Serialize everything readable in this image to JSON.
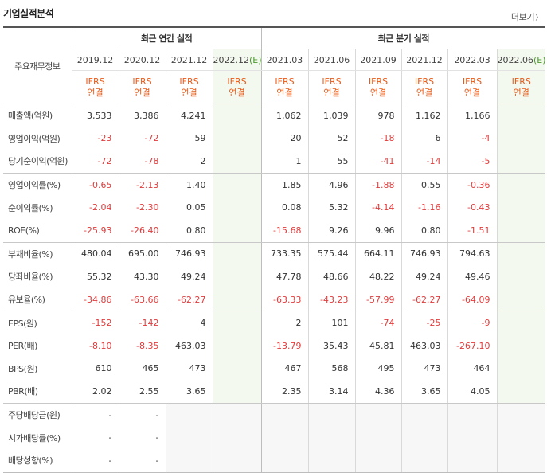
{
  "title": "기업실적분석",
  "more_label": "더보기",
  "row_header_label": "주요재무정보",
  "annual_group_label": "최근 연간 실적",
  "quarter_group_label": "최근 분기 실적",
  "annual_periods": [
    "2019.12",
    "2020.12",
    "2021.12",
    "2022.12(E)"
  ],
  "quarter_periods": [
    "2021.03",
    "2021.06",
    "2021.09",
    "2021.12",
    "2022.03",
    "2022.06(E)"
  ],
  "accounting": {
    "line1": "IFRS",
    "line2": "연결"
  },
  "colors": {
    "negative": "#e03c3c",
    "ifrs": "#e85c1a",
    "estimate_bg": "#f4f9ef"
  },
  "rows": [
    {
      "label": "매출액(억원)",
      "annual": [
        "3,533",
        "3,386",
        "4,241",
        ""
      ],
      "quarter": [
        "1,062",
        "1,039",
        "978",
        "1,162",
        "1,166",
        ""
      ]
    },
    {
      "label": "영업이익(억원)",
      "annual": [
        "-23",
        "-72",
        "59",
        ""
      ],
      "quarter": [
        "20",
        "52",
        "-18",
        "6",
        "-4",
        ""
      ]
    },
    {
      "label": "당기순이익(억원)",
      "annual": [
        "-72",
        "-78",
        "2",
        ""
      ],
      "quarter": [
        "1",
        "55",
        "-41",
        "-14",
        "-5",
        ""
      ]
    },
    {
      "label": "영업이익률(%)",
      "annual": [
        "-0.65",
        "-2.13",
        "1.40",
        ""
      ],
      "quarter": [
        "1.85",
        "4.96",
        "-1.88",
        "0.55",
        "-0.36",
        ""
      ]
    },
    {
      "label": "순이익률(%)",
      "annual": [
        "-2.04",
        "-2.30",
        "0.05",
        ""
      ],
      "quarter": [
        "0.08",
        "5.32",
        "-4.14",
        "-1.16",
        "-0.43",
        ""
      ]
    },
    {
      "label": "ROE(%)",
      "annual": [
        "-25.93",
        "-26.40",
        "0.80",
        ""
      ],
      "quarter": [
        "-15.68",
        "9.26",
        "9.96",
        "0.80",
        "-1.51",
        ""
      ]
    },
    {
      "label": "부채비율(%)",
      "annual": [
        "480.04",
        "695.00",
        "746.93",
        ""
      ],
      "quarter": [
        "733.35",
        "575.44",
        "664.11",
        "746.93",
        "794.63",
        ""
      ]
    },
    {
      "label": "당좌비율(%)",
      "annual": [
        "55.32",
        "43.30",
        "49.24",
        ""
      ],
      "quarter": [
        "47.78",
        "48.66",
        "48.22",
        "49.24",
        "49.46",
        ""
      ]
    },
    {
      "label": "유보율(%)",
      "annual": [
        "-34.86",
        "-63.66",
        "-62.27",
        ""
      ],
      "quarter": [
        "-63.33",
        "-43.23",
        "-57.99",
        "-62.27",
        "-64.09",
        ""
      ]
    },
    {
      "label": "EPS(원)",
      "annual": [
        "-152",
        "-142",
        "4",
        ""
      ],
      "quarter": [
        "2",
        "101",
        "-74",
        "-25",
        "-9",
        ""
      ]
    },
    {
      "label": "PER(배)",
      "annual": [
        "-8.10",
        "-8.35",
        "463.03",
        ""
      ],
      "quarter": [
        "-13.79",
        "35.43",
        "45.81",
        "463.03",
        "-267.10",
        ""
      ]
    },
    {
      "label": "BPS(원)",
      "annual": [
        "610",
        "465",
        "473",
        ""
      ],
      "quarter": [
        "467",
        "568",
        "495",
        "473",
        "464",
        ""
      ]
    },
    {
      "label": "PBR(배)",
      "annual": [
        "2.02",
        "2.55",
        "3.65",
        ""
      ],
      "quarter": [
        "2.35",
        "3.14",
        "4.36",
        "3.65",
        "4.05",
        ""
      ]
    },
    {
      "label": "주당배당금(원)",
      "annual": [
        "-",
        "-",
        "",
        ""
      ],
      "quarter": [
        "",
        "",
        "",
        "",
        "",
        ""
      ]
    },
    {
      "label": "시가배당률(%)",
      "annual": [
        "-",
        "-",
        "",
        ""
      ],
      "quarter": [
        "",
        "",
        "",
        "",
        "",
        ""
      ]
    },
    {
      "label": "배당성향(%)",
      "annual": [
        "-",
        "-",
        "",
        ""
      ],
      "quarter": [
        "",
        "",
        "",
        "",
        "",
        ""
      ]
    }
  ]
}
